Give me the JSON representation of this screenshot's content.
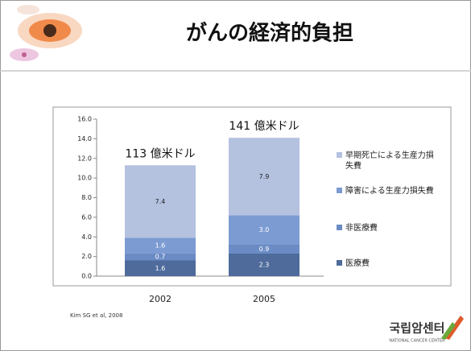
{
  "chart_data": {
    "type": "stacked-bar",
    "title": "がんの経済的負担",
    "categories": [
      "2002",
      "2005"
    ],
    "annotations": [
      "113 億米ドル",
      "141 億米ドル"
    ],
    "series": [
      {
        "name": "医療費",
        "color": "#4e6b9b",
        "values": [
          1.6,
          2.3
        ],
        "value_labels": [
          "1.6",
          "2.3"
        ]
      },
      {
        "name": "非医療費",
        "color": "#6a8bc4",
        "values": [
          0.7,
          0.9
        ],
        "value_labels": [
          "0.7",
          "0.9"
        ]
      },
      {
        "name": "障害による生産力損失費",
        "color": "#7c9bd3",
        "values": [
          1.6,
          3.0
        ],
        "value_labels": [
          "1.6",
          "3.0"
        ]
      },
      {
        "name": "早期死亡による生産力損失費",
        "color": "#b4c2e0",
        "values": [
          7.4,
          7.9
        ],
        "value_labels": [
          "7.4",
          "7.9"
        ]
      }
    ],
    "ylim": [
      0,
      16
    ],
    "yticks": [
      {
        "value": 0,
        "label": "0.0"
      },
      {
        "value": 2,
        "label": "2.0"
      },
      {
        "value": 4,
        "label": "4.0"
      },
      {
        "value": 6,
        "label": "6.0"
      },
      {
        "value": 8,
        "label": "8.0"
      },
      {
        "value": 10,
        "label": "10.0"
      },
      {
        "value": 12,
        "label": "12.0"
      },
      {
        "value": 14,
        "label": "14.0"
      },
      {
        "value": 16,
        "label": "16.0"
      }
    ],
    "grid": false,
    "source": "Kim SG et al, 2008"
  },
  "logo": {
    "text": "국립암센터",
    "subtext": "NATIONAL CANCER CENTER"
  }
}
